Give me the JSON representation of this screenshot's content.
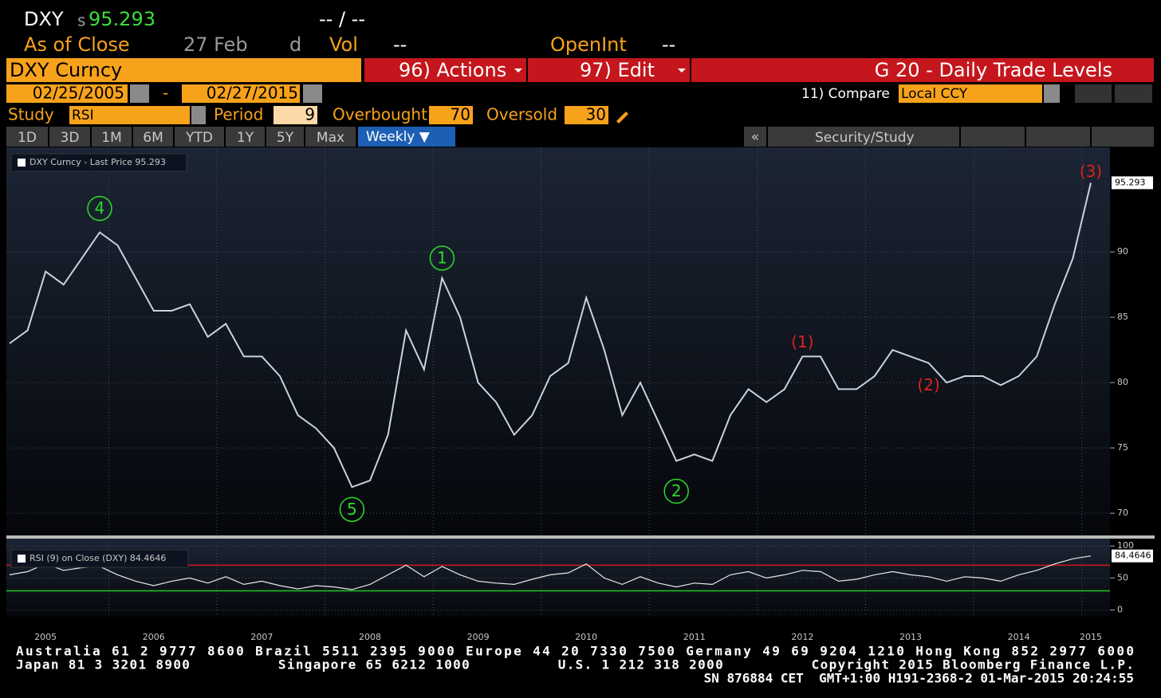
{
  "header": {
    "ticker": "DXY",
    "price_prefix": "s",
    "price": "95.293",
    "change": "-- / --",
    "as_of": "As of Close",
    "date": "27 Feb",
    "freq": "d",
    "vol_label": "Vol",
    "vol": "--",
    "openint_label": "OpenInt",
    "openint": "--"
  },
  "toolbar": {
    "security": "DXY Curncy",
    "actions": "96) Actions",
    "edit": "97) Edit",
    "page_title": "G 20 - Daily Trade Levels",
    "start_date": "02/25/2005",
    "date_sep": "-",
    "end_date": "02/27/2015",
    "compare_label": "11) Compare",
    "compare": "Local CCY",
    "study_label": "Study",
    "study": "RSI",
    "period_label": "Period",
    "period": "9",
    "overbought_label": "Overbought",
    "overbought": "70",
    "oversold_label": "Oversold",
    "oversold": "30",
    "ranges": [
      "1D",
      "3D",
      "1M",
      "6M",
      "YTD",
      "1Y",
      "5Y",
      "Max"
    ],
    "active_range": "Weekly ▼",
    "collapse": "«",
    "panel": "Security/Study"
  },
  "chart_data": [
    {
      "type": "line",
      "categories": [
        null,
        null,
        "2005",
        null,
        null,
        null,
        null,
        null,
        "2006",
        null,
        null,
        null,
        null,
        null,
        "2007",
        null,
        null,
        null,
        null,
        null,
        "2008",
        null,
        null,
        null,
        null,
        null,
        "2009",
        null,
        null,
        null,
        null,
        null,
        "2010",
        null,
        null,
        null,
        null,
        null,
        "2011",
        null,
        null,
        null,
        null,
        null,
        "2012",
        null,
        null,
        null,
        null,
        null,
        "2013",
        null,
        null,
        null,
        null,
        null,
        "2014",
        null,
        null,
        null,
        "2015"
      ],
      "series": [
        {
          "name": "DXY Curncy - Last Price 95.293",
          "color": "#c9d2de",
          "values": [
            83,
            84,
            88.5,
            87.5,
            89.5,
            91.5,
            90.5,
            88,
            85.5,
            85.5,
            86,
            83.5,
            84.5,
            82,
            82,
            80.5,
            77.5,
            76.5,
            75,
            72,
            72.5,
            76,
            84,
            81,
            88,
            85,
            80,
            78.5,
            76,
            77.5,
            80.5,
            81.5,
            86.5,
            82.5,
            77.5,
            80,
            77,
            74,
            74.5,
            74,
            77.5,
            79.5,
            78.5,
            79.5,
            82,
            82,
            79.5,
            79.5,
            80.5,
            82.5,
            82,
            81.5,
            80,
            80.5,
            80.5,
            79.8,
            80.5,
            82,
            86,
            89.5,
            95.293
          ]
        }
      ],
      "ylim": [
        68.3,
        98
      ],
      "yticks": [
        70,
        75,
        80,
        85,
        90
      ],
      "grid": true,
      "annotations": [
        {
          "label": "4",
          "color": "#2bdc2b"
        },
        {
          "label": "1",
          "color": "#2bdc2b"
        },
        {
          "label": "5",
          "color": "#2bdc2b"
        },
        {
          "label": "2",
          "color": "#2bdc2b"
        },
        {
          "label": "(1)",
          "color": "#e0201c"
        },
        {
          "label": "(2)",
          "color": "#e0201c"
        },
        {
          "label": "(3)",
          "color": "#e0201c"
        }
      ]
    },
    {
      "type": "line",
      "series": [
        {
          "name": "RSI (9) on Close (DXY) 84.4646",
          "color": "#e8e8e8",
          "values": [
            55,
            60,
            72,
            62,
            66,
            68,
            55,
            45,
            38,
            45,
            50,
            42,
            52,
            40,
            45,
            38,
            33,
            38,
            36,
            32,
            40,
            55,
            70,
            52,
            68,
            55,
            45,
            42,
            40,
            48,
            55,
            58,
            72,
            50,
            40,
            52,
            42,
            36,
            42,
            40,
            55,
            60,
            50,
            55,
            62,
            60,
            45,
            48,
            55,
            60,
            55,
            52,
            45,
            52,
            50,
            45,
            55,
            62,
            72,
            80,
            84.4646
          ]
        }
      ],
      "ylim": [
        -8,
        104
      ],
      "yticks": [
        0,
        50,
        100
      ],
      "grid": true
    }
  ],
  "footer": {
    "lines": [
      "Australia 61 2 9777 8600 Brazil 5511 2395 9000 Europe 44 20 7330 7500 Germany 49 69 9204 1210 Hong Kong 852 2977 6000",
      "Japan 81 3 3201 8900          Singapore 65 6212 1000          U.S. 1 212 318 2000          Copyright 2015 Bloomberg Finance L.P.",
      "SN 876884 CET  GMT+1:00 H191-2368-2 01-Mar-2015 20:24:55"
    ]
  }
}
